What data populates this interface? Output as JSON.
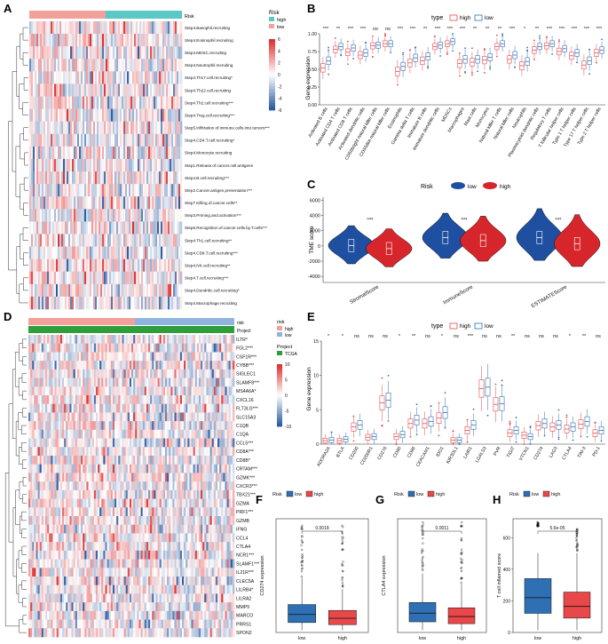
{
  "panels": {
    "A": {
      "letter": "A",
      "annotation_title": "Risk",
      "legend_title": "Risk",
      "legend_items": [
        "high",
        "low"
      ],
      "colorbar_ticks": [
        "6",
        "4",
        "2",
        "0",
        "-2",
        "-4",
        "-6"
      ],
      "rows": [
        "Step4.Basophil.recruiting",
        "Step4.Eosinophil.recruiting",
        "Step4.MDSC.recruiting",
        "Step4.Neutrophil.recruiting",
        "Step4.Th17.cell.recruiting*",
        "Step4.Th22.cell.recruiting",
        "Step4.Th2.cell.recruiting***",
        "Step4.Treg.cell.recruiting***",
        "Step5.Infiltration.of.immune.cells.into.tumors***",
        "Step4.CD4.T.cell.recruiting*",
        "Step4.Monocyte.recruiting",
        "Step1.Release.of.cancer.cell.antigens",
        "Step4.B.cell.recruiting***",
        "Step2.Cancer.antigen.presentation***",
        "Step7.Killing.of.cancer.cells**",
        "Step3.Priming.and.activation***",
        "Step6.Recognition.of.cancer.cells.by.T.cells***",
        "Step4.Th1.cell.recruiting**",
        "Step4.CD8.T.cell.recruiting***",
        "Step4.NK.cell.recruiting**",
        "Step4.T.cell.recruiting***",
        "Step4.Dendritic.cell.recruiting*",
        "Step4.Macrophage.recruiting"
      ]
    },
    "B": {
      "letter": "B",
      "legend_title": "type",
      "legend_items": [
        "high",
        "low"
      ],
      "ylabel": "Gene expression",
      "yticks": [
        "1.00",
        "0.75",
        "0.50",
        "0.25",
        "0.00"
      ]
    },
    "C": {
      "letter": "C",
      "legend_title": "Risk",
      "legend_items": [
        "low",
        "high"
      ],
      "ylabel": "TME score",
      "yticks": [
        "6000",
        "4000",
        "2000",
        "0",
        "-2000",
        "-4000"
      ],
      "sig": [
        "***",
        "***",
        "***"
      ]
    },
    "D": {
      "letter": "D",
      "annotation_titles": [
        "risk",
        "Project"
      ],
      "legend1_title": "risk",
      "legend1_items": [
        "high",
        "low"
      ],
      "legend2_title": "Project",
      "legend2_items": [
        "TCGA"
      ],
      "colorbar_ticks": [
        "10",
        "5",
        "0",
        "-5",
        "-10"
      ],
      "rows": [
        "ILTR*",
        "FGL2***",
        "CSF1R***",
        "CYBB***",
        "SIGLEC1",
        "SLAMF8***",
        "MS4A6A*",
        "CXCL16",
        "FLT3LG***",
        "SLC15A3",
        "C1QB",
        "C1QA",
        "CCL5***",
        "CD8A***",
        "CD8B*",
        "CRTAM***",
        "GZMK***",
        "CXCR3***",
        "TBX21***",
        "GZMA",
        "PRF1***",
        "GZMB",
        "IFNG",
        "CCL4",
        "CTLA4",
        "NCR1***",
        "SLAMF1***",
        "IL21R***",
        "CLEC5A",
        "LILRB4*",
        "LILRA2",
        "MMP9",
        "MARCO",
        "PRRS1",
        "SPON2"
      ]
    },
    "E": {
      "letter": "E",
      "legend_title": "type",
      "legend_items": [
        "high",
        "low"
      ],
      "ylabel": "Gene expression",
      "yticks": [
        "15",
        "10",
        "5",
        "0"
      ]
    },
    "F": {
      "letter": "F",
      "legend_title": "Risk",
      "legend_items": [
        "low",
        "high"
      ],
      "ylabel": "CD274 expression",
      "pvalue": "0.0018",
      "xticks": [
        "low",
        "high"
      ]
    },
    "G": {
      "letter": "G",
      "legend_title": "Risk",
      "legend_items": [
        "low",
        "high"
      ],
      "ylabel": "CTLA4 expression",
      "pvalue": "0.0011",
      "xticks": [
        "low",
        "high"
      ]
    },
    "H": {
      "letter": "H",
      "legend_title": "Risk",
      "legend_items": [
        "low",
        "high"
      ],
      "ylabel": "T cell inflamed score",
      "pvalue": "5.6e-05",
      "xticks": [
        "low",
        "high"
      ],
      "yticks": [
        "600",
        "400",
        "200",
        "0"
      ]
    }
  },
  "colors": {
    "risk_high": "#f4a09a",
    "risk_low": "#5bc7c7",
    "box_high": "#e8484a",
    "box_low": "#2f6fb4",
    "violin_low": "#1f4fa0",
    "violin_high": "#d7262b",
    "project_tcga": "#2e9e3b",
    "heat_high": "#e03030",
    "heat_low": "#2c5aa0"
  },
  "chart_data": [
    {
      "panel": "B",
      "type": "box",
      "categories": [
        "Activated B cells",
        "Activated CD4 T cells",
        "Activated CD8 T cells",
        "Activated dendritic cells",
        "CD56bright natural killer cells",
        "CD56dim natural killer cells",
        "Eosinophils",
        "Gamma delta T cells",
        "Immature B cells",
        "Immature dendritic cells",
        "MDSCs",
        "Macrophages",
        "Mast cells",
        "Monocytes",
        "Natural killer T cells",
        "Natural killer cells",
        "Neutrophils",
        "Plasmacytoid dendritic cells",
        "Regulatory T cells",
        "T follicular helper cells",
        "Type 1 T helper cells",
        "Type 17 T helper cells",
        "Type 2 T helper cells"
      ],
      "significance": [
        "***",
        "**",
        "***",
        "***",
        "ns",
        "ns",
        "***",
        "***",
        "**",
        "***",
        "***",
        "***",
        "**",
        "**",
        "**",
        "***",
        "*",
        "**",
        "***",
        "***",
        "***",
        "***",
        "***"
      ],
      "series": [
        {
          "name": "high",
          "median": [
            0.52,
            0.78,
            0.74,
            0.7,
            0.83,
            0.86,
            0.47,
            0.59,
            0.62,
            0.82,
            0.86,
            0.58,
            0.6,
            0.63,
            0.82,
            0.64,
            0.55,
            0.77,
            0.83,
            0.75,
            0.69,
            0.56,
            0.73
          ]
        },
        {
          "name": "low",
          "median": [
            0.62,
            0.82,
            0.8,
            0.73,
            0.84,
            0.86,
            0.54,
            0.66,
            0.68,
            0.84,
            0.89,
            0.64,
            0.64,
            0.67,
            0.86,
            0.7,
            0.61,
            0.82,
            0.86,
            0.79,
            0.73,
            0.62,
            0.77
          ]
        }
      ],
      "ylim": [
        0.0,
        1.0
      ]
    },
    {
      "panel": "C",
      "type": "violin",
      "categories": [
        "StromalScore",
        "ImmuneScore",
        "ESTIMATEScore"
      ],
      "series": [
        {
          "name": "low",
          "median": [
            50,
            1100,
            1100
          ]
        },
        {
          "name": "high",
          "median": [
            -350,
            700,
            300
          ]
        }
      ],
      "ylim": [
        -4800,
        6400
      ]
    },
    {
      "panel": "E",
      "type": "box",
      "categories": [
        "ADORA2A",
        "BTLA",
        "CD200",
        "CD200R1",
        "CD276",
        "CD80",
        "CD86",
        "CEACAM1",
        "IDO1",
        "KIR3DL1",
        "LAIR1",
        "LGALS3",
        "PVR",
        "TIGIT",
        "VTCN1",
        "CD274",
        "LAG3",
        "CTLA4",
        "TIM-3",
        "PD-1"
      ],
      "significance": [
        "*",
        "*",
        "ns",
        "ns",
        "ns",
        "*",
        "**",
        "ns",
        "*",
        "ns",
        "***",
        "ns",
        "ns",
        "**",
        "ns",
        "ns",
        "ns",
        "*",
        "**",
        "ns"
      ],
      "series": [
        {
          "name": "high",
          "median": [
            0.5,
            0.5,
            2.5,
            1.0,
            6.0,
            1.1,
            3.0,
            3.0,
            3.8,
            0.6,
            2.0,
            8.1,
            5.8,
            1.6,
            1.3,
            2.7,
            2.5,
            2.2,
            2.9,
            1.6
          ]
        },
        {
          "name": "low",
          "median": [
            0.6,
            0.7,
            2.8,
            1.1,
            6.4,
            1.4,
            3.5,
            3.3,
            4.6,
            0.6,
            2.8,
            8.3,
            5.9,
            2.0,
            1.1,
            3.0,
            2.8,
            2.5,
            3.3,
            2.0
          ]
        }
      ],
      "ylim": [
        0,
        15
      ]
    },
    {
      "panel": "F",
      "type": "box",
      "categories": [
        "low",
        "high"
      ],
      "median": [
        0.95,
        0.75
      ],
      "ylabel": "CD274 expression",
      "pvalue": "0.0018"
    },
    {
      "panel": "G",
      "type": "box",
      "categories": [
        "low",
        "high"
      ],
      "median": [
        0.85,
        0.7
      ],
      "ylabel": "CTLA4 expression",
      "pvalue": "0.0011"
    },
    {
      "panel": "H",
      "type": "box",
      "categories": [
        "low",
        "high"
      ],
      "median": [
        220,
        165
      ],
      "ylabel": "T cell inflamed score",
      "pvalue": "5.6e-05",
      "ylim": [
        0,
        720
      ]
    }
  ]
}
